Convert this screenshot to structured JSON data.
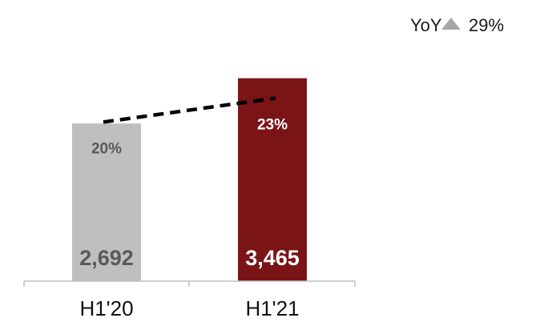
{
  "yoy": {
    "label": "YoY",
    "icon": "triangle-up-icon",
    "icon_color": "#a6a6a6",
    "value": "29%"
  },
  "chart_data": {
    "type": "bar",
    "title": "",
    "xlabel": "",
    "ylabel": "",
    "categories": [
      "H1'20",
      "H1'21"
    ],
    "values": [
      2692,
      3465
    ],
    "value_labels": [
      "2,692",
      "3,465"
    ],
    "bar_colors": [
      "#bfbfbf",
      "#7b1416"
    ],
    "value_label_colors": [
      "#595959",
      "#ffffff"
    ],
    "ylim": [
      0,
      3980
    ],
    "grid": false,
    "line_series": {
      "style": "dashed",
      "color": "#000000",
      "values": [
        20,
        23
      ],
      "labels": [
        "20%",
        "23%"
      ],
      "label_colors": [
        "#595959",
        "#ffffff"
      ],
      "ylim": [
        0,
        29.3
      ]
    }
  }
}
